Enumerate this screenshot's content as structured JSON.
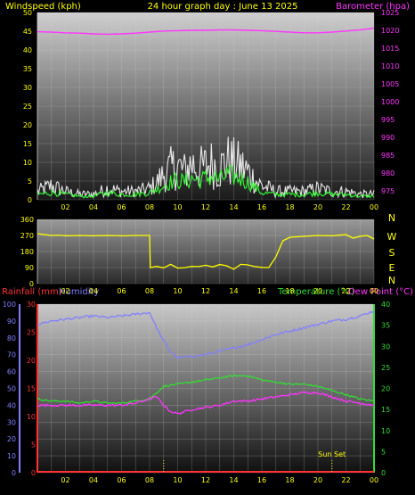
{
  "header": {
    "left_label": "Windspeed (kph)",
    "title": "24 hour graph day : June 13 2025",
    "right_label": "Barometer (hpa)"
  },
  "colors": {
    "wind": "#e8e8e8",
    "gust": "#ffffff",
    "avg_wind": "#33ff33",
    "barometer": "#ff33ff",
    "direction": "#ffff00",
    "rain": "#ff3333",
    "humidity": "#8080ff",
    "temperature": "#33dd33",
    "dewpoint": "#ff33ff",
    "tick_label": "#ffff00",
    "sunset_marker": "#ffff00"
  },
  "x_ticks": [
    "02",
    "04",
    "06",
    "08",
    "10",
    "12",
    "14",
    "16",
    "18",
    "20",
    "22",
    "00"
  ],
  "chart_data": [
    {
      "type": "line",
      "name": "wind-barometer",
      "x_range": [
        0,
        24
      ],
      "y_left": {
        "label": "Windspeed (kph)",
        "range": [
          0,
          50
        ],
        "ticks": [
          0,
          5,
          10,
          15,
          20,
          25,
          30,
          35,
          40,
          45,
          50
        ]
      },
      "y_right": {
        "label": "Barometer (hpa)",
        "range": [
          972.5,
          1025
        ],
        "ticks": [
          975,
          980,
          985,
          990,
          995,
          1000,
          1005,
          1010,
          1015,
          1020,
          1025
        ]
      },
      "series": [
        {
          "name": "Barometer (hpa)",
          "axis": "right",
          "x": [
            0,
            1,
            2,
            3,
            4,
            5,
            6,
            7,
            8,
            9,
            10,
            11,
            12,
            13,
            14,
            15,
            16,
            17,
            18,
            19,
            20,
            21,
            22,
            23,
            24
          ],
          "y": [
            1019.6,
            1019.5,
            1019.3,
            1019.2,
            1019.0,
            1018.9,
            1019.0,
            1019.2,
            1019.5,
            1019.8,
            1019.9,
            1020.0,
            1020.0,
            1020.1,
            1020.1,
            1020.0,
            1019.9,
            1019.7,
            1019.5,
            1019.3,
            1019.3,
            1019.5,
            1019.8,
            1020.1,
            1020.6
          ]
        },
        {
          "name": "Windspeed (kph)",
          "axis": "left",
          "style": "noisy-bars",
          "x": [
            0,
            1,
            2,
            3,
            4,
            5,
            6,
            7,
            8,
            8.5,
            9,
            9.5,
            10,
            10.5,
            11,
            11.5,
            12,
            12.5,
            13,
            13.5,
            14,
            14.5,
            15,
            15.5,
            16,
            17,
            18,
            19,
            20,
            21,
            22,
            23,
            24
          ],
          "y": [
            3,
            5,
            3,
            2,
            2,
            4,
            3,
            3,
            4,
            6,
            9,
            11,
            12,
            10,
            13,
            11,
            12,
            13,
            11,
            14,
            13,
            12,
            10,
            7,
            5,
            3,
            3,
            3,
            4,
            3,
            3,
            2,
            2
          ]
        },
        {
          "name": "Avg windspeed (kph)",
          "axis": "left",
          "x": [
            0,
            1,
            2,
            3,
            4,
            5,
            6,
            7,
            8,
            8.5,
            9,
            9.5,
            10,
            10.5,
            11,
            11.5,
            12,
            12.5,
            13,
            13.5,
            14,
            14.5,
            15,
            15.5,
            16,
            17,
            18,
            19,
            20,
            21,
            22,
            23,
            24
          ],
          "y": [
            1.5,
            2,
            1.5,
            1,
            1,
            2,
            1.5,
            1.5,
            2,
            3,
            4,
            5,
            5.5,
            5,
            6,
            5.5,
            6,
            6.5,
            5.5,
            7,
            6.5,
            6,
            5,
            3.5,
            2,
            1.5,
            1.5,
            1.5,
            2,
            1.5,
            1.5,
            1,
            1
          ]
        }
      ]
    },
    {
      "type": "line",
      "name": "wind-direction",
      "x_range": [
        0,
        24
      ],
      "y_left": {
        "range": [
          0,
          360
        ],
        "ticks": [
          0,
          90,
          180,
          270,
          360
        ]
      },
      "y_right_labels": [
        "N",
        "W",
        "S",
        "E",
        "N"
      ],
      "series": [
        {
          "name": "Wind direction (deg)",
          "x": [
            0,
            0.5,
            1,
            1.5,
            2,
            3,
            4,
            5,
            6,
            7,
            8,
            8.05,
            8.5,
            9,
            9.5,
            10,
            10.5,
            11,
            11.5,
            12,
            12.5,
            13,
            13.5,
            14,
            14.5,
            15,
            15.5,
            16,
            16.5,
            17,
            17.5,
            18,
            19,
            20,
            21,
            22,
            22.5,
            23,
            23.5,
            24
          ],
          "y": [
            280,
            275,
            270,
            272,
            268,
            270,
            268,
            270,
            268,
            270,
            270,
            90,
            95,
            90,
            100,
            85,
            95,
            90,
            100,
            95,
            90,
            100,
            95,
            90,
            100,
            95,
            90,
            95,
            90,
            150,
            240,
            260,
            265,
            270,
            268,
            275,
            255,
            265,
            270,
            250
          ]
        }
      ]
    },
    {
      "type": "line",
      "name": "rain-humidity-temperature",
      "x_range": [
        0,
        24
      ],
      "header_labels": {
        "left1": "Rainfall (mm)",
        "left2": "Humidity",
        "right1": "Temperature (°C)",
        "right2": "Dew Point (°C)"
      },
      "y_humidity": {
        "range": [
          0,
          100
        ],
        "ticks": [
          0,
          10,
          20,
          30,
          40,
          50,
          60,
          70,
          80,
          90,
          100
        ]
      },
      "y_rain": {
        "range": [
          0,
          30
        ],
        "ticks": [
          0,
          5,
          10,
          15,
          20,
          25,
          30
        ]
      },
      "y_temp": {
        "range": [
          0,
          40
        ],
        "ticks": [
          0,
          5,
          10,
          15,
          20,
          25,
          30,
          35,
          40
        ]
      },
      "annotation": {
        "label": "Sun Set",
        "x": 21,
        "sunrise_x": 9
      },
      "series": [
        {
          "name": "Humidity",
          "axis": "humidity",
          "x": [
            0,
            1,
            2,
            3,
            4,
            5,
            6,
            7,
            8,
            8.5,
            9,
            9.5,
            10,
            11,
            12,
            13,
            14,
            15,
            16,
            17,
            18,
            19,
            20,
            21,
            22,
            23,
            24
          ],
          "y": [
            88,
            90,
            91,
            92,
            93,
            92,
            93,
            94,
            95,
            86,
            78,
            72,
            68,
            69,
            70,
            72,
            74,
            76,
            79,
            82,
            84,
            86,
            88,
            90,
            91,
            93,
            96
          ]
        },
        {
          "name": "Temperature (°C)",
          "axis": "temp",
          "x": [
            0,
            1,
            2,
            3,
            4,
            5,
            6,
            7,
            8,
            8.5,
            9,
            10,
            11,
            12,
            13,
            14,
            15,
            16,
            17,
            18,
            19,
            20,
            21,
            22,
            23,
            24
          ],
          "y": [
            17.5,
            17,
            17,
            16.5,
            17,
            16.5,
            16.5,
            17,
            17.5,
            19,
            20.5,
            21,
            21.5,
            22,
            22.5,
            23,
            23,
            22,
            21.5,
            21,
            21,
            20.5,
            19.5,
            18.5,
            17.5,
            17
          ]
        },
        {
          "name": "Dew Point (°C)",
          "axis": "temp",
          "x": [
            0,
            1,
            2,
            3,
            4,
            5,
            6,
            7,
            8,
            8.5,
            9,
            9.5,
            10,
            11,
            12,
            13,
            14,
            15,
            16,
            17,
            18,
            19,
            20,
            21,
            22,
            23,
            24
          ],
          "y": [
            16,
            16,
            16,
            16,
            16,
            16,
            16,
            16.5,
            17.5,
            18,
            16,
            14.5,
            14,
            15,
            15.5,
            16,
            17,
            17,
            17.5,
            18,
            18.5,
            19,
            19,
            18,
            17,
            16.5,
            16
          ]
        },
        {
          "name": "Rainfall (mm)",
          "axis": "rain",
          "x": [
            0,
            24
          ],
          "y": [
            0,
            0
          ]
        }
      ]
    }
  ]
}
